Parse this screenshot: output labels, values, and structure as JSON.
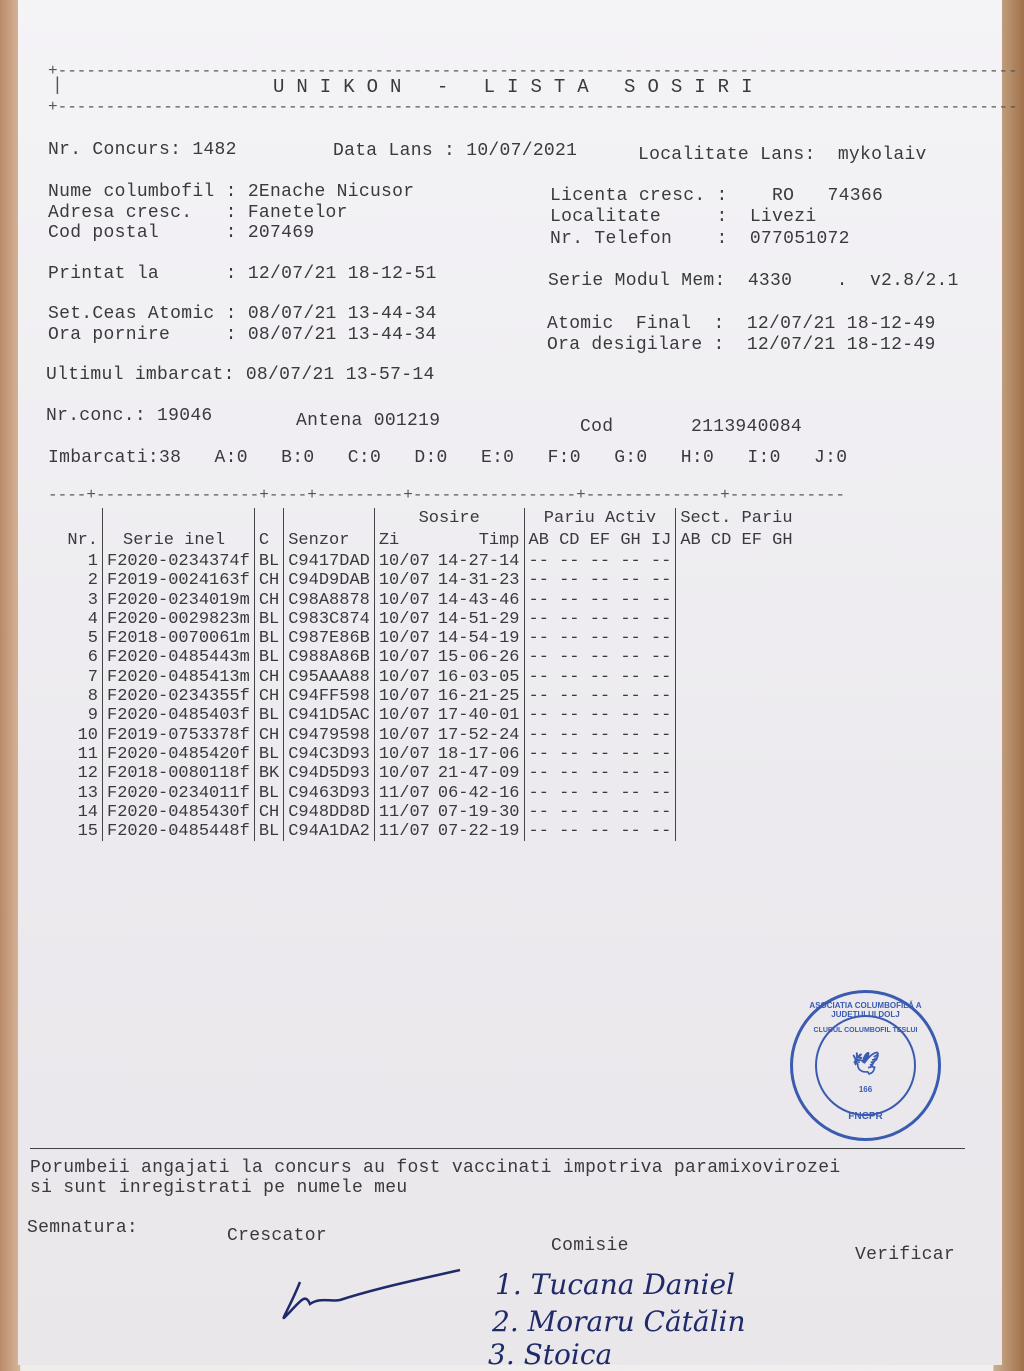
{
  "title": "U N I K O N   -   L I S T A   S O S I R I",
  "header": {
    "nr_concurs": "Nr. Concurs: 1482",
    "data_lans": "Data Lans : 10/07/2021",
    "localitate_lans": "Localitate Lans:  mykolaiv",
    "nume": "Nume columbofil : 2Enache Nicusor",
    "adresa": "Adresa cresc.   : Fanetelor",
    "cod_postal": "Cod postal      : 207469",
    "licenta": "Licenta cresc. :    RO   74366",
    "localitate": "Localitate     :  Livezi",
    "telefon": "Nr. Telefon    :  077051072",
    "printat": "Printat la      : 12/07/21 18-12-51",
    "serie_modul": "Serie Modul Mem:  4330    .  v2.8/2.1",
    "set_ceas": "Set.Ceas Atomic : 08/07/21 13-44-34",
    "ora_pornire": "Ora pornire     : 08/07/21 13-44-34",
    "atomic_final": "Atomic  Final  :  12/07/21 18-12-49",
    "ora_desigilare": "Ora desigilare :  12/07/21 18-12-49",
    "ultimul": "Ultimul imbarcat: 08/07/21 13-57-14",
    "nr_conc": "Nr.conc.: 19046",
    "antena": "Antena 001219",
    "cod": "Cod       2113940084",
    "imbarcati": "Imbarcati:38   A:0   B:0   C:0   D:0   E:0   F:0   G:0   H:0   I:0   J:0"
  },
  "table": {
    "headers": {
      "nr": "Nr.",
      "serie": "Serie inel",
      "c": "C",
      "senzor": "Senzor",
      "sosire": "Sosire",
      "zi": "Zi",
      "timp": "Timp",
      "pariu": "Pariu Activ",
      "pariu_cols": "AB CD EF GH IJ",
      "sect": "Sect. Pariu",
      "sect_cols": "AB CD EF GH"
    },
    "rows": [
      [
        "1",
        "F2020-0234374f",
        "BL",
        "C9417DAD",
        "10/07",
        "14-27-14"
      ],
      [
        "2",
        "F2019-0024163f",
        "CH",
        "C94D9DAB",
        "10/07",
        "14-31-23"
      ],
      [
        "3",
        "F2020-0234019m",
        "CH",
        "C98A8878",
        "10/07",
        "14-43-46"
      ],
      [
        "4",
        "F2020-0029823m",
        "BL",
        "C983C874",
        "10/07",
        "14-51-29"
      ],
      [
        "5",
        "F2018-0070061m",
        "BL",
        "C987E86B",
        "10/07",
        "14-54-19"
      ],
      [
        "6",
        "F2020-0485443m",
        "BL",
        "C988A86B",
        "10/07",
        "15-06-26"
      ],
      [
        "7",
        "F2020-0485413m",
        "CH",
        "C95AAA88",
        "10/07",
        "16-03-05"
      ],
      [
        "8",
        "F2020-0234355f",
        "CH",
        "C94FF598",
        "10/07",
        "16-21-25"
      ],
      [
        "9",
        "F2020-0485403f",
        "BL",
        "C941D5AC",
        "10/07",
        "17-40-01"
      ],
      [
        "10",
        "F2019-0753378f",
        "CH",
        "C9479598",
        "10/07",
        "17-52-24"
      ],
      [
        "11",
        "F2020-0485420f",
        "BL",
        "C94C3D93",
        "10/07",
        "18-17-06"
      ],
      [
        "12",
        "F2018-0080118f",
        "BK",
        "C94D5D93",
        "10/07",
        "21-47-09"
      ],
      [
        "13",
        "F2020-0234011f",
        "BL",
        "C9463D93",
        "11/07",
        "06-42-16"
      ],
      [
        "14",
        "F2020-0485430f",
        "CH",
        "C948DD8D",
        "11/07",
        "07-19-30"
      ],
      [
        "15",
        "F2020-0485448f",
        "BL",
        "C94A1DA2",
        "11/07",
        "07-22-19"
      ]
    ],
    "pariu_empty": "-- -- -- -- --"
  },
  "footer": {
    "declaratie1": "Porumbeii angajati la concurs au fost vaccinati impotriva paramixovirozei",
    "declaratie2": "si sunt inregistrati pe numele meu",
    "semnatura": "Semnatura:",
    "crescator": "Crescator",
    "comisie": "Comisie",
    "verificar": "Verificar",
    "comisie_1": "1. Tucana Daniel",
    "comisie_2": "2. Moraru Cătălin",
    "comisie_3": "3. Stoica"
  },
  "stamp": {
    "outer": "ASOCIATIA COLUMBOFILĂ A JUDEȚULUI DOLJ",
    "inner": "CLUBUL COLUMBOFIL TESLUI",
    "bottom": "FNCPR",
    "num": "166"
  },
  "colors": {
    "ink": "#3a3a3e",
    "stamp": "#3a5bb0",
    "handwriting": "#1e2a6a"
  }
}
